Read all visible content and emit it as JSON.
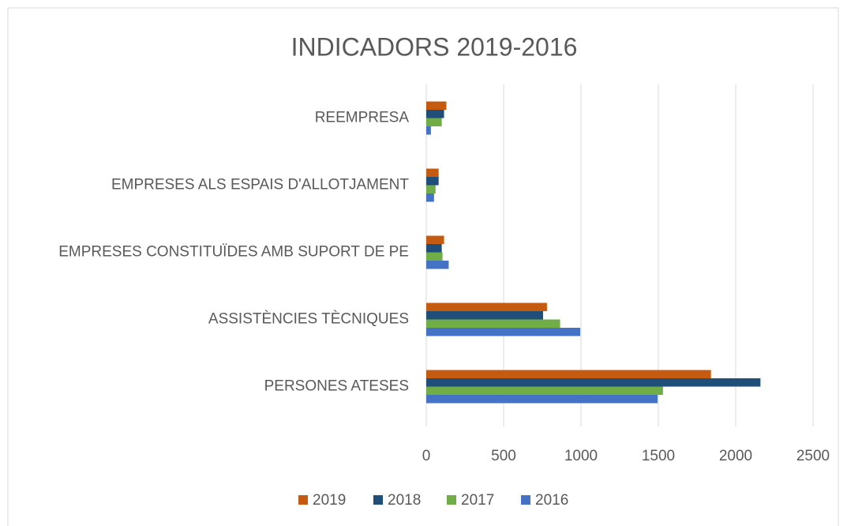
{
  "chart_data": {
    "type": "barh",
    "title": "INDICADORS 2019-2016",
    "categories": [
      "PERSONES ATESES",
      "ASSISTÈNCIES TÈCNIQUES",
      "EMPRESES CONSTITUÏDES AMB SUPORT DE PE",
      "EMPRESES ALS ESPAIS D'ALLOTJAMENT",
      "REEMPRESA"
    ],
    "series": [
      {
        "name": "2019",
        "color": "#c55a11",
        "values": [
          1840,
          780,
          115,
          80,
          130
        ]
      },
      {
        "name": "2018",
        "color": "#1f4e79",
        "values": [
          2160,
          755,
          100,
          80,
          115
        ]
      },
      {
        "name": "2017",
        "color": "#70ad47",
        "values": [
          1530,
          865,
          105,
          60,
          100
        ]
      },
      {
        "name": "2016",
        "color": "#4472c4",
        "values": [
          1495,
          995,
          145,
          50,
          30
        ]
      }
    ],
    "xlim": [
      0,
      2500
    ],
    "xticks": [
      0,
      500,
      1000,
      1500,
      2000,
      2500
    ],
    "grid": true,
    "legend": "bottom"
  }
}
